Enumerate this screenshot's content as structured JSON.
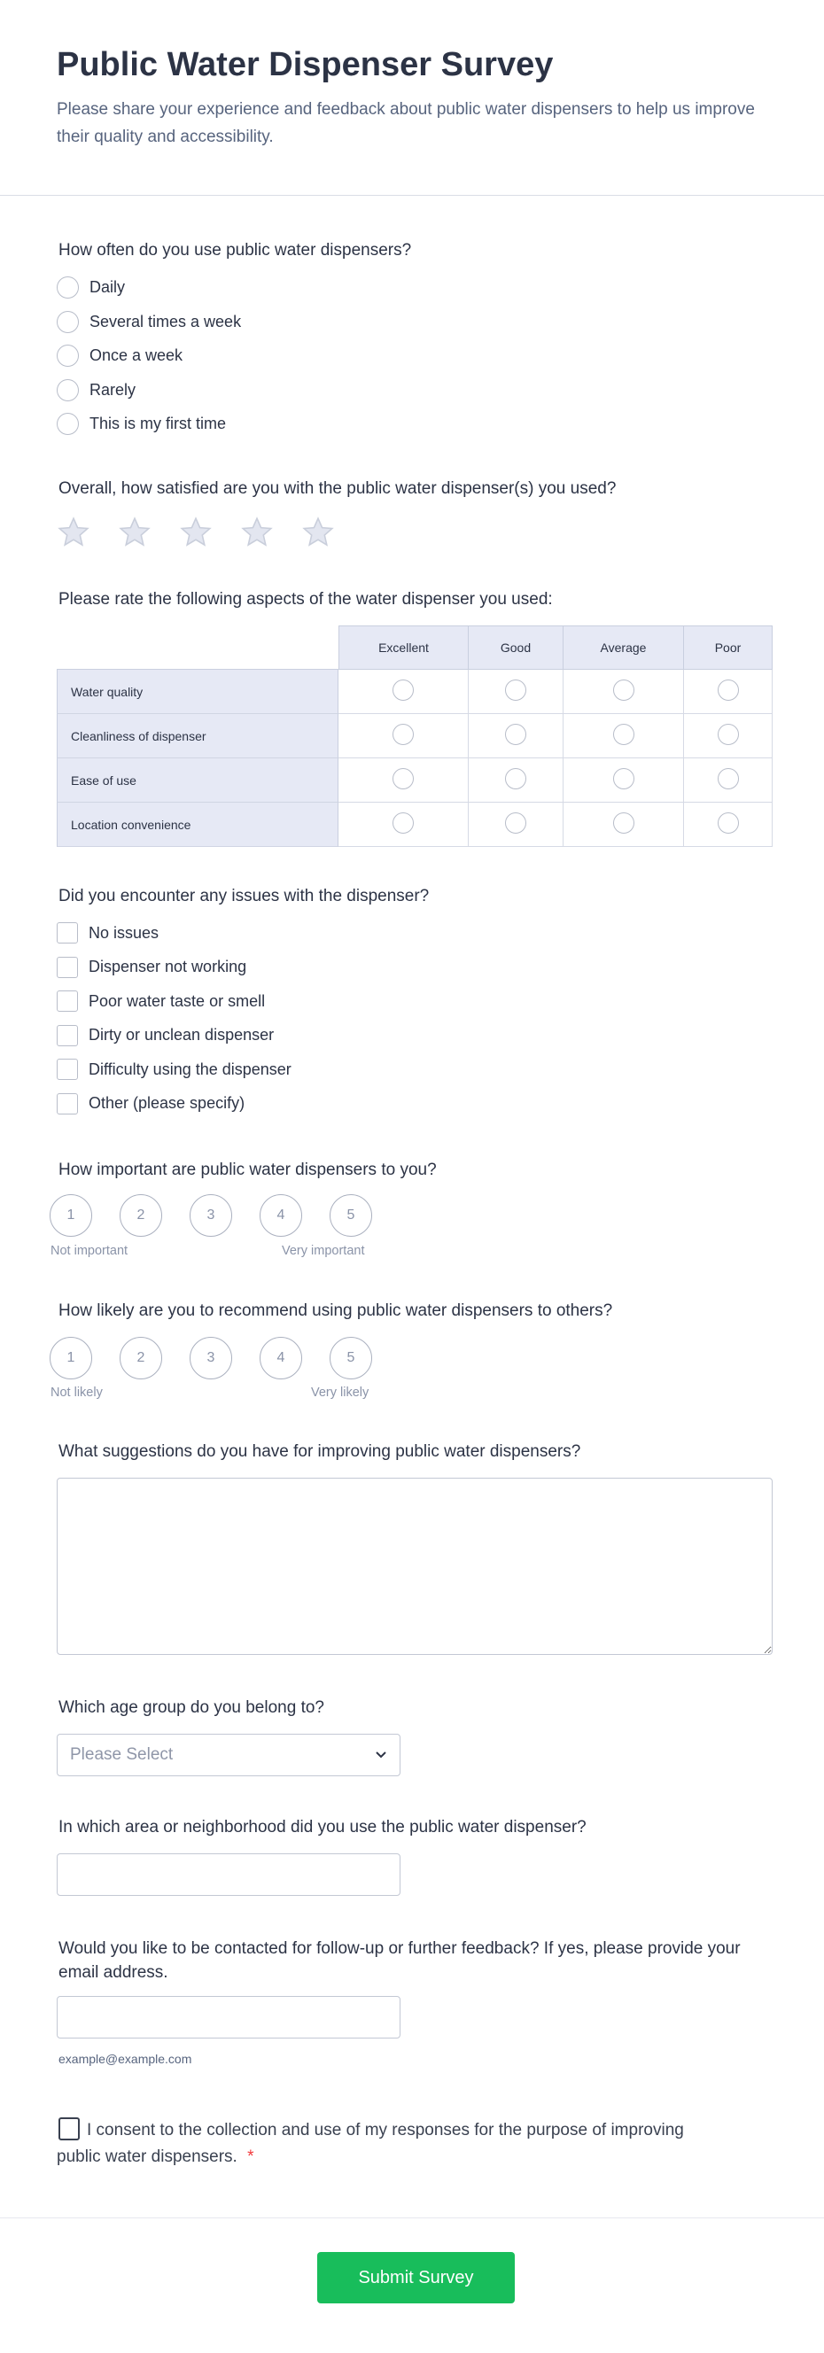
{
  "header": {
    "title": "Public Water Dispenser Survey",
    "subtitle": "Please share your experience and feedback about public water dispensers to help us improve their quality and accessibility."
  },
  "q1": {
    "label": "How often do you use public water dispensers?",
    "options": [
      "Daily",
      "Several times a week",
      "Once a week",
      "Rarely",
      "This is my first time"
    ]
  },
  "q2": {
    "label": "Overall, how satisfied are you with the public water dispenser(s) you used?",
    "stars": 5,
    "rating": 0
  },
  "q3": {
    "label": "Please rate the following aspects of the water dispenser you used:",
    "columns": [
      "Excellent",
      "Good",
      "Average",
      "Poor"
    ],
    "rows": [
      "Water quality",
      "Cleanliness of dispenser",
      "Ease of use",
      "Location convenience"
    ]
  },
  "q4": {
    "label": "Did you encounter any issues with the dispenser?",
    "options": [
      "No issues",
      "Dispenser not working",
      "Poor water taste or smell",
      "Dirty or unclean dispenser",
      "Difficulty using the dispenser",
      "Other (please specify)"
    ]
  },
  "q5": {
    "label": "How important are public water dispensers to you?",
    "scale": [
      "1",
      "2",
      "3",
      "4",
      "5"
    ],
    "low": "Not important",
    "high": "Very important"
  },
  "q6": {
    "label": "How likely are you to recommend using public water dispensers to others?",
    "scale": [
      "1",
      "2",
      "3",
      "4",
      "5"
    ],
    "low": "Not likely",
    "high": "Very likely"
  },
  "q7": {
    "label": "What suggestions do you have for improving public water dispensers?",
    "value": ""
  },
  "q8": {
    "label": "Which age group do you belong to?",
    "placeholder": "Please Select"
  },
  "q9": {
    "label": "In which area or neighborhood did you use the public water dispenser?",
    "value": ""
  },
  "q10": {
    "label": "Would you like to be contacted for follow-up or further feedback? If yes, please provide your email address.",
    "value": "",
    "hint": "example@example.com"
  },
  "consent": {
    "label": "I consent to the collection and use of my responses for the purpose of improving public water dispensers.",
    "required": "*"
  },
  "submit": {
    "label": "Submit Survey"
  },
  "colors": {
    "accent": "#18bd5b",
    "text": "#2c3345",
    "table_header": "#e6e9f5",
    "required": "#f23a3c"
  }
}
